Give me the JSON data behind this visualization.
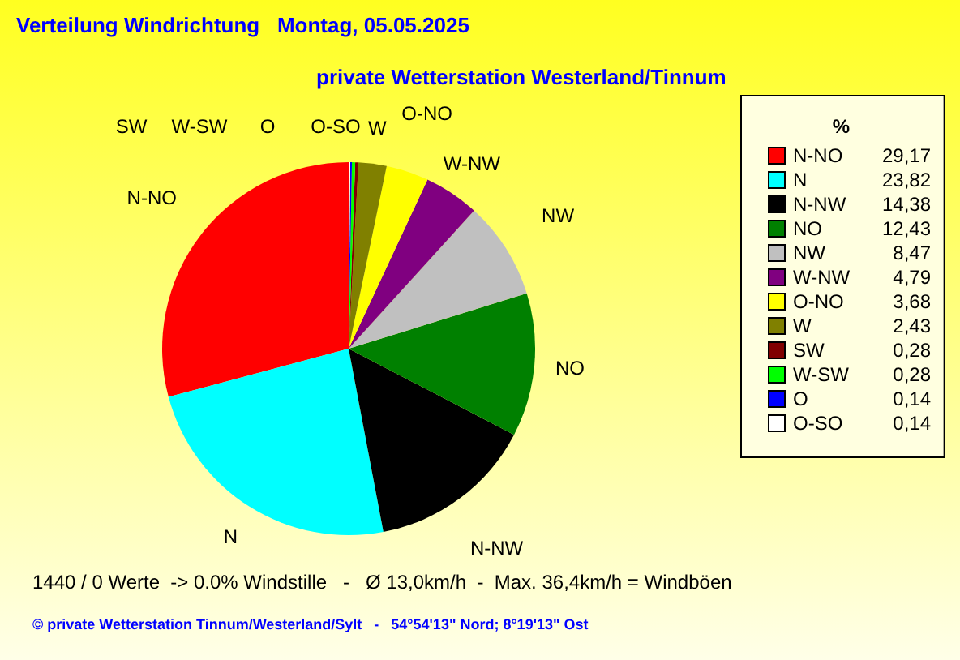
{
  "chart_data": {
    "type": "pie",
    "title": "Verteilung Windrichtung   Montag, 05.05.2025",
    "subtitle": "private Wetterstation Westerland/Tinnum",
    "legend_title": "%",
    "legend": "right",
    "categories": [
      "N-NO",
      "N",
      "N-NW",
      "NO",
      "NW",
      "W-NW",
      "O-NO",
      "W",
      "SW",
      "W-SW",
      "O",
      "O-SO"
    ],
    "values": [
      29.17,
      23.82,
      14.38,
      12.43,
      8.47,
      4.79,
      3.68,
      2.43,
      0.28,
      0.28,
      0.14,
      0.14
    ],
    "value_labels": [
      "29,17",
      "23,82",
      "14,38",
      "12,43",
      "8,47",
      "4,79",
      "3,68",
      "2,43",
      "0,28",
      "0,28",
      "0,14",
      "0,14"
    ],
    "colors": [
      "#ff0000",
      "#00ffff",
      "#000000",
      "#008000",
      "#c0c0c0",
      "#800080",
      "#ffff00",
      "#808000",
      "#800000",
      "#00ff00",
      "#0000ff",
      "#ffffff"
    ],
    "annotations": [
      "1440 / 0 Werte  -> 0.0% Windstille   -   Ø 13,0km/h  -  Max. 36,4km/h = Windböen",
      "© private Wetterstation Tinnum/Westerland/Sylt   -   54°54'13\" Nord; 8°19'13\" Ost"
    ]
  }
}
